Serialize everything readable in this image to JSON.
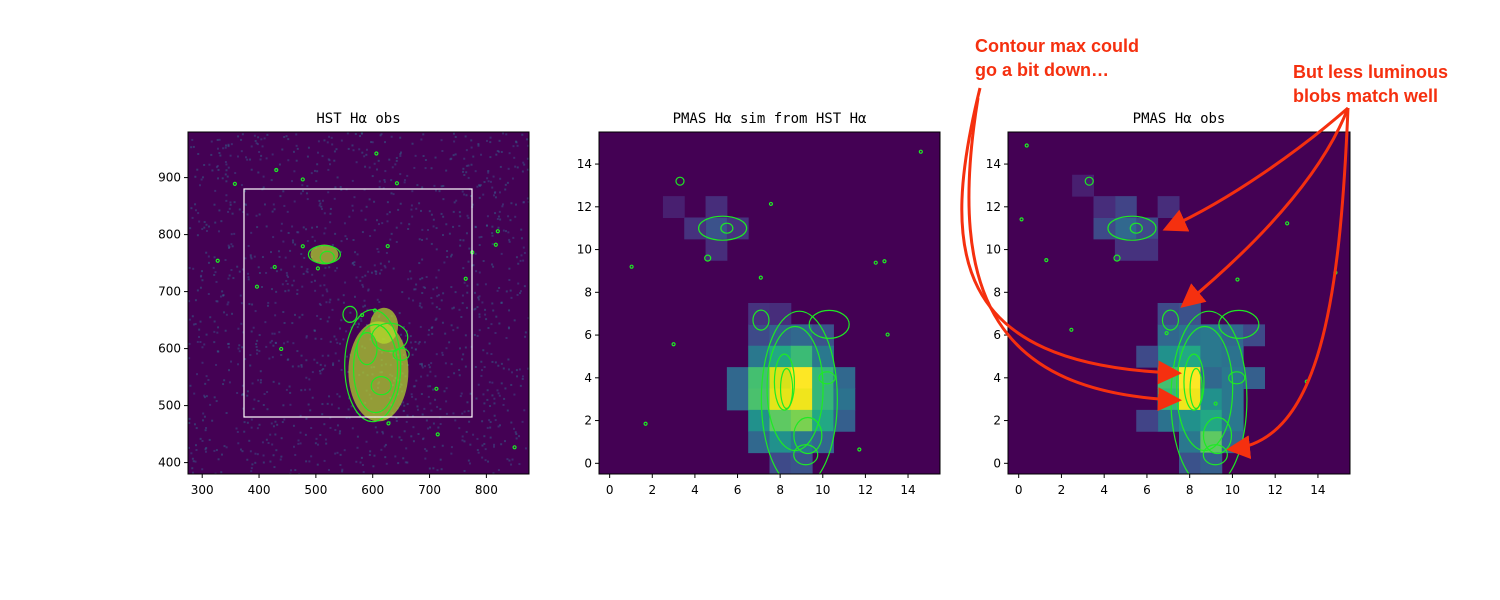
{
  "chart_data": [
    {
      "type": "image",
      "title": "HST Hα obs",
      "xlim": [
        275,
        875
      ],
      "ylim": [
        380,
        980
      ],
      "xticks": [
        300,
        400,
        500,
        600,
        700,
        800
      ],
      "yticks": [
        400,
        500,
        600,
        700,
        800,
        900
      ]
    },
    {
      "type": "image",
      "title": "PMAS Hα sim from HST Hα",
      "xlim": [
        -0.5,
        15.5
      ],
      "ylim": [
        -0.5,
        15.5
      ],
      "xticks": [
        0,
        2,
        4,
        6,
        8,
        10,
        12,
        14
      ],
      "yticks": [
        0,
        2,
        4,
        6,
        8,
        10,
        12,
        14
      ]
    },
    {
      "type": "image",
      "title": "PMAS Hα obs",
      "xlim": [
        -0.5,
        15.5
      ],
      "ylim": [
        -0.5,
        15.5
      ],
      "xticks": [
        0,
        2,
        4,
        6,
        8,
        10,
        12,
        14
      ],
      "yticks": [
        0,
        2,
        4,
        6,
        8,
        10,
        12,
        14
      ],
      "annotations": [
        {
          "lines": [
            "Contour max could",
            "go a bit down…"
          ]
        },
        {
          "lines": [
            "But less luminous",
            "blobs match well"
          ]
        }
      ]
    }
  ]
}
